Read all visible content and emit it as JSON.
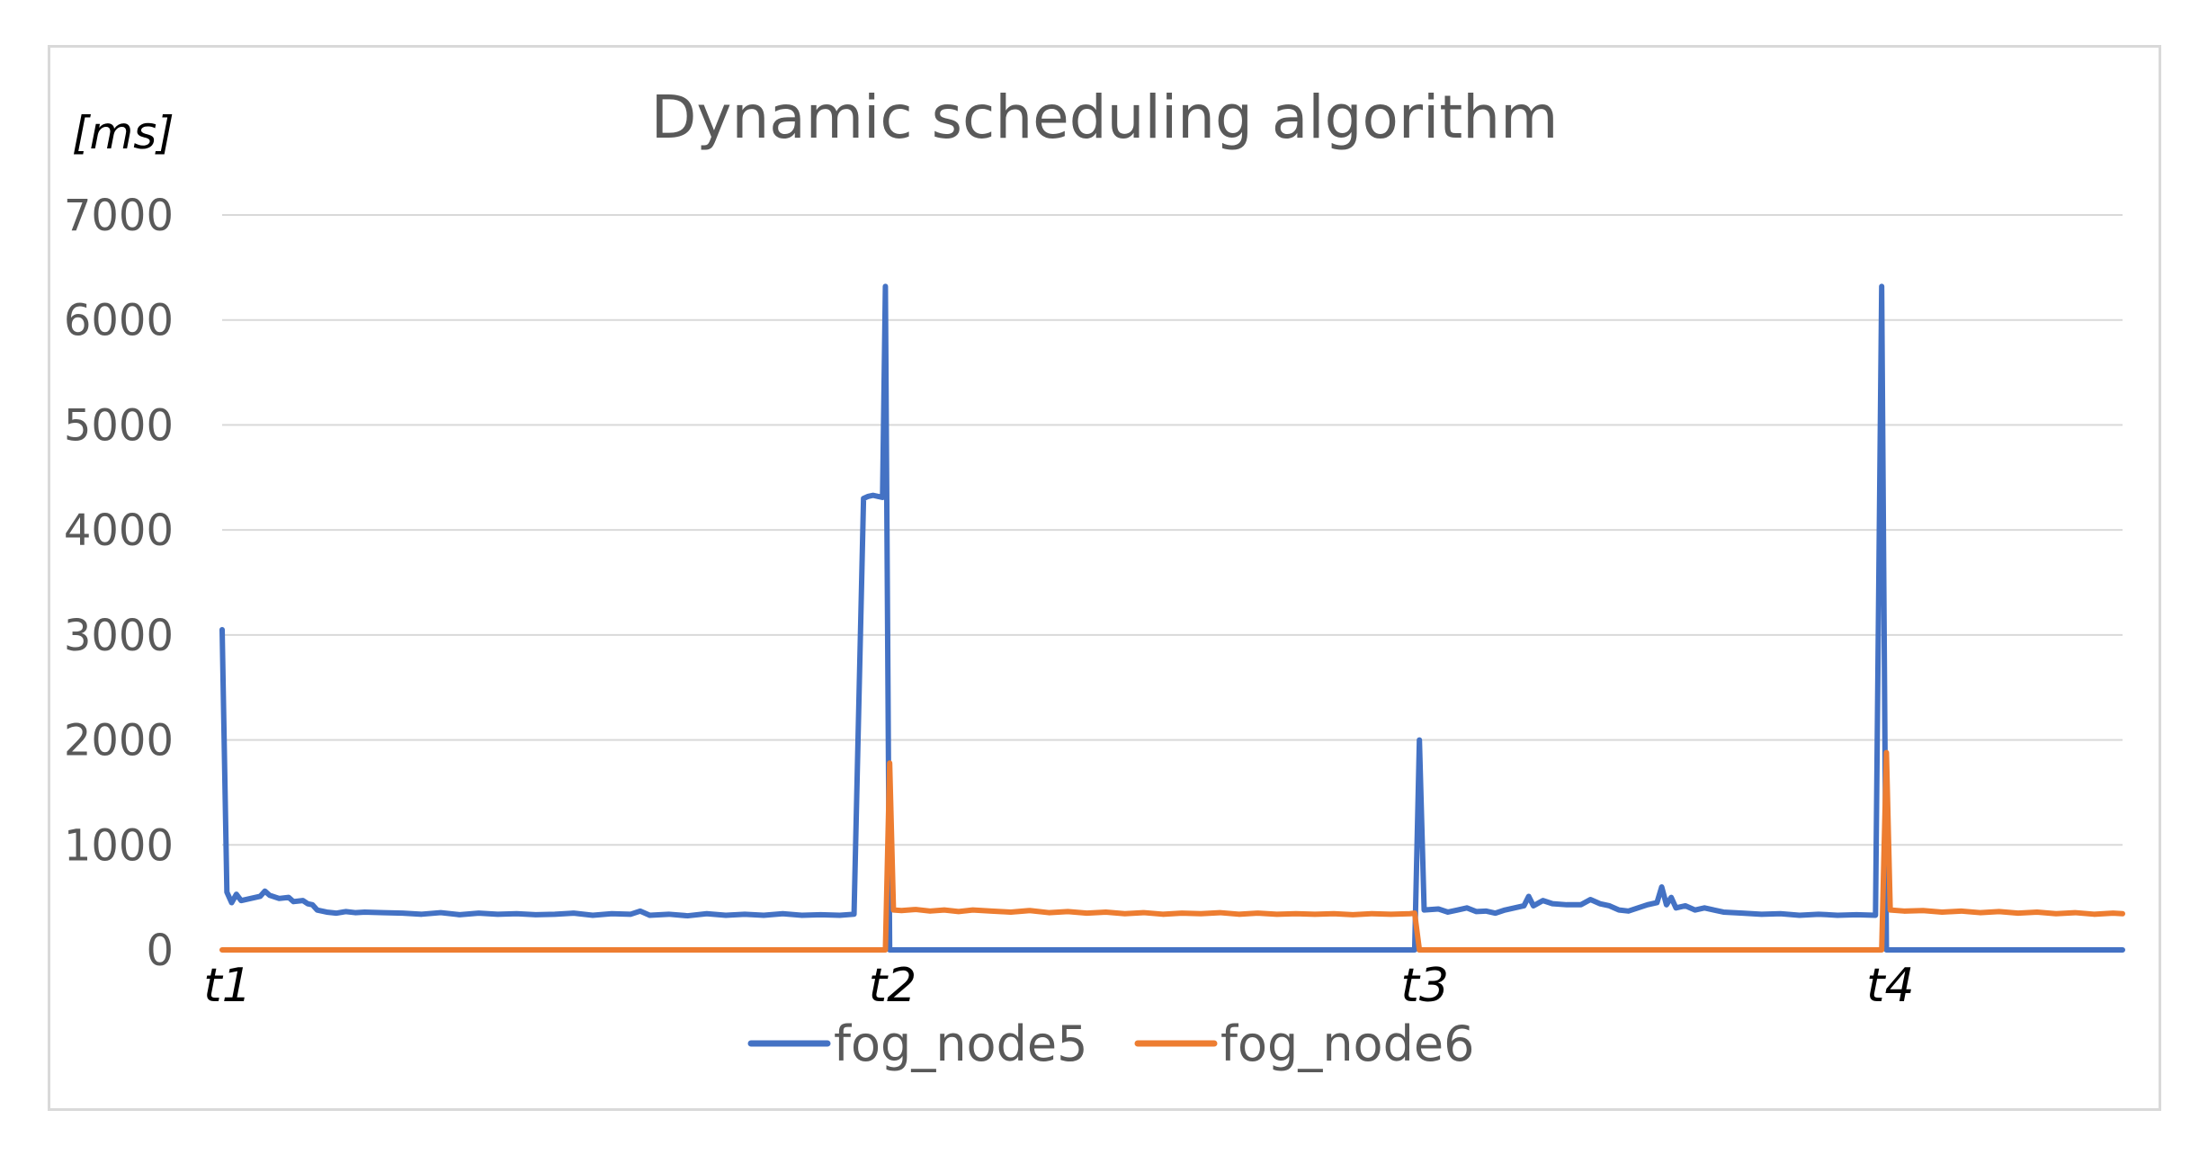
{
  "chart_data": {
    "type": "line",
    "title": "Dynamic scheduling algorithm",
    "ylabel": "[ms]",
    "xlabel": "",
    "ylim": [
      0,
      7000
    ],
    "yticks": [
      0,
      1000,
      2000,
      3000,
      4000,
      5000,
      6000,
      7000
    ],
    "xlim": [
      0,
      400
    ],
    "x_tick_labels": [
      {
        "label": "t1",
        "x": 0
      },
      {
        "label": "t2",
        "x": 140
      },
      {
        "label": "t3",
        "x": 252
      },
      {
        "label": "t4",
        "x": 350
      }
    ],
    "grid": true,
    "legend_position": "bottom",
    "series": [
      {
        "name": "fog_node5",
        "color": "#4472c4",
        "points": [
          [
            0,
            3050
          ],
          [
            1,
            550
          ],
          [
            2,
            450
          ],
          [
            3,
            530
          ],
          [
            4,
            470
          ],
          [
            6,
            490
          ],
          [
            8,
            510
          ],
          [
            9,
            560
          ],
          [
            10,
            520
          ],
          [
            12,
            490
          ],
          [
            14,
            500
          ],
          [
            15,
            460
          ],
          [
            17,
            470
          ],
          [
            18,
            440
          ],
          [
            19,
            430
          ],
          [
            20,
            380
          ],
          [
            22,
            360
          ],
          [
            24,
            350
          ],
          [
            26,
            365
          ],
          [
            28,
            355
          ],
          [
            30,
            360
          ],
          [
            34,
            355
          ],
          [
            38,
            350
          ],
          [
            42,
            340
          ],
          [
            46,
            355
          ],
          [
            50,
            335
          ],
          [
            54,
            350
          ],
          [
            58,
            340
          ],
          [
            62,
            345
          ],
          [
            66,
            335
          ],
          [
            70,
            340
          ],
          [
            74,
            350
          ],
          [
            78,
            330
          ],
          [
            82,
            345
          ],
          [
            86,
            340
          ],
          [
            88,
            370
          ],
          [
            90,
            330
          ],
          [
            94,
            340
          ],
          [
            98,
            325
          ],
          [
            102,
            345
          ],
          [
            106,
            330
          ],
          [
            110,
            340
          ],
          [
            114,
            330
          ],
          [
            118,
            345
          ],
          [
            122,
            330
          ],
          [
            126,
            335
          ],
          [
            130,
            330
          ],
          [
            133,
            340
          ],
          [
            135,
            4300
          ],
          [
            136,
            4320
          ],
          [
            137,
            4330
          ],
          [
            138,
            4320
          ],
          [
            139,
            4310
          ],
          [
            139.6,
            6320
          ],
          [
            140.5,
            0
          ],
          [
            200,
            0
          ],
          [
            251,
            0
          ],
          [
            252,
            2000
          ],
          [
            253,
            380
          ],
          [
            256,
            390
          ],
          [
            258,
            360
          ],
          [
            260,
            380
          ],
          [
            262,
            400
          ],
          [
            264,
            365
          ],
          [
            266,
            370
          ],
          [
            268,
            350
          ],
          [
            270,
            380
          ],
          [
            272,
            400
          ],
          [
            274,
            420
          ],
          [
            275,
            510
          ],
          [
            276,
            420
          ],
          [
            278,
            470
          ],
          [
            280,
            440
          ],
          [
            283,
            430
          ],
          [
            286,
            430
          ],
          [
            288,
            480
          ],
          [
            290,
            440
          ],
          [
            292,
            420
          ],
          [
            294,
            380
          ],
          [
            296,
            370
          ],
          [
            298,
            400
          ],
          [
            300,
            430
          ],
          [
            302,
            450
          ],
          [
            303,
            600
          ],
          [
            304,
            430
          ],
          [
            305,
            500
          ],
          [
            306,
            400
          ],
          [
            308,
            420
          ],
          [
            310,
            380
          ],
          [
            312,
            400
          ],
          [
            314,
            380
          ],
          [
            316,
            360
          ],
          [
            320,
            350
          ],
          [
            324,
            340
          ],
          [
            328,
            345
          ],
          [
            332,
            330
          ],
          [
            336,
            340
          ],
          [
            340,
            330
          ],
          [
            344,
            335
          ],
          [
            348,
            330
          ],
          [
            349.3,
            6320
          ],
          [
            350.3,
            0
          ],
          [
            400,
            0
          ]
        ]
      },
      {
        "name": "fog_node6",
        "color": "#ed7d31",
        "points": [
          [
            0,
            0
          ],
          [
            139.6,
            0
          ],
          [
            140.5,
            1780
          ],
          [
            141.3,
            380
          ],
          [
            143,
            375
          ],
          [
            146,
            385
          ],
          [
            149,
            370
          ],
          [
            152,
            380
          ],
          [
            155,
            365
          ],
          [
            158,
            380
          ],
          [
            162,
            370
          ],
          [
            166,
            360
          ],
          [
            170,
            375
          ],
          [
            174,
            355
          ],
          [
            178,
            365
          ],
          [
            182,
            350
          ],
          [
            186,
            360
          ],
          [
            190,
            345
          ],
          [
            194,
            355
          ],
          [
            198,
            340
          ],
          [
            202,
            350
          ],
          [
            206,
            345
          ],
          [
            210,
            355
          ],
          [
            214,
            340
          ],
          [
            218,
            350
          ],
          [
            222,
            340
          ],
          [
            226,
            345
          ],
          [
            230,
            340
          ],
          [
            234,
            345
          ],
          [
            238,
            335
          ],
          [
            242,
            345
          ],
          [
            246,
            340
          ],
          [
            250,
            345
          ],
          [
            251,
            350
          ],
          [
            252,
            0
          ],
          [
            349.3,
            0
          ],
          [
            350.3,
            1880
          ],
          [
            351.1,
            380
          ],
          [
            354,
            370
          ],
          [
            358,
            375
          ],
          [
            362,
            360
          ],
          [
            366,
            370
          ],
          [
            370,
            355
          ],
          [
            374,
            365
          ],
          [
            378,
            350
          ],
          [
            382,
            360
          ],
          [
            386,
            345
          ],
          [
            390,
            355
          ],
          [
            394,
            340
          ],
          [
            398,
            350
          ],
          [
            400,
            345
          ]
        ]
      }
    ]
  }
}
